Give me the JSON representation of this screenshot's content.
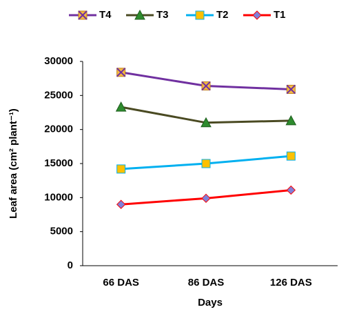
{
  "chart_data": {
    "type": "line",
    "x_label": "Days",
    "y_label": "Leaf  area (cm² plant⁻¹)",
    "categories": [
      "66 DAS",
      "86 DAS",
      "126 DAS"
    ],
    "series": [
      {
        "name": "T4",
        "color": "#7030a0",
        "marker": "x-square",
        "marker_color": "#f4b942",
        "values": [
          28400,
          26400,
          25900
        ]
      },
      {
        "name": "T3",
        "color": "#4a4a22",
        "marker": "triangle",
        "marker_color": "#2e8b2e",
        "values": [
          23300,
          21000,
          21300
        ]
      },
      {
        "name": "T2",
        "color": "#00b0f0",
        "marker": "square",
        "marker_color": "#ffc000",
        "values": [
          14200,
          15000,
          16100
        ]
      },
      {
        "name": "T1",
        "color": "#ff0000",
        "marker": "diamond",
        "marker_color": "#8080d8",
        "values": [
          9000,
          9900,
          11100
        ]
      }
    ],
    "ylim": [
      0,
      30000
    ],
    "yticks": [
      0,
      5000,
      10000,
      15000,
      20000,
      25000,
      30000
    ],
    "grid": false,
    "legend": "top"
  }
}
